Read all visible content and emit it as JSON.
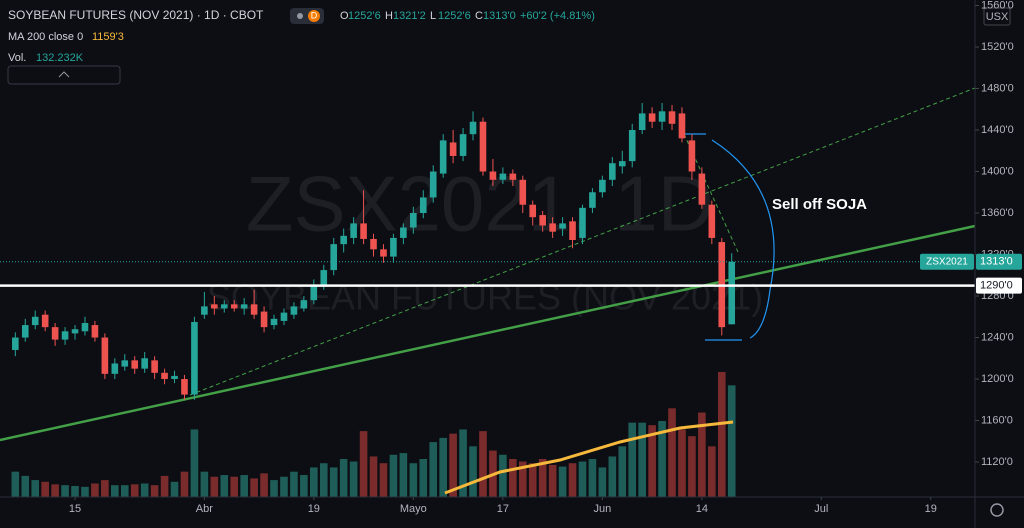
{
  "chart_data": {
    "type": "candlestick",
    "legend": {
      "title": "SOYBEAN FUTURES (NOV 2021) · 1D · CBOT",
      "badge": "D",
      "ohlc": [
        {
          "key": "O",
          "value": "1252'6"
        },
        {
          "key": "H",
          "value": "1321'2"
        },
        {
          "key": "L",
          "value": "1252'6"
        },
        {
          "key": "C",
          "value": "1313'0"
        }
      ],
      "change": "+60'2 (+4.81%)",
      "ma_label": "MA 200 close 0",
      "ma_value": "1159'3",
      "vol_label": "Vol.",
      "vol_value": "132.232K"
    },
    "watermark": "ZSX2021, 1D",
    "watermark_subtitle": "SOYBEAN FUTURES (NOV 2021)",
    "currency": "USX",
    "annotation": "Sell off SOJA",
    "symbol_label": "ZSX2021",
    "last_price_label": "1313'0",
    "price_line": {
      "value": 1290,
      "label": "1290'0"
    },
    "up_color": "#26a69a",
    "down_color": "#ef5350",
    "open": [
      1228,
      1240,
      1252,
      1262,
      1250,
      1238,
      1244,
      1246,
      1252,
      1240,
      1205,
      1212,
      1218,
      1210,
      1218,
      1206,
      1200,
      1200,
      1185,
      1262,
      1272,
      1268,
      1272,
      1268,
      1272,
      1265,
      1252,
      1256,
      1262,
      1268,
      1276,
      1290,
      1305,
      1330,
      1336,
      1350,
      1335,
      1325,
      1318,
      1336,
      1346,
      1360,
      1375,
      1398,
      1428,
      1415,
      1436,
      1448,
      1400,
      1392,
      1398,
      1392,
      1368,
      1358,
      1350,
      1345,
      1352,
      1336,
      1365,
      1380,
      1392,
      1405,
      1410,
      1440,
      1456,
      1448,
      1458,
      1456,
      1430,
      1398,
      1368,
      1332,
      1252.75
    ],
    "high": [
      1245,
      1258,
      1266,
      1266,
      1254,
      1250,
      1252,
      1260,
      1256,
      1244,
      1220,
      1224,
      1222,
      1226,
      1222,
      1210,
      1208,
      1204,
      1260,
      1284,
      1280,
      1276,
      1276,
      1278,
      1286,
      1270,
      1262,
      1268,
      1274,
      1280,
      1296,
      1310,
      1336,
      1345,
      1356,
      1382,
      1340,
      1330,
      1340,
      1350,
      1366,
      1382,
      1406,
      1436,
      1440,
      1442,
      1458,
      1452,
      1412,
      1404,
      1402,
      1396,
      1372,
      1362,
      1356,
      1356,
      1356,
      1368,
      1384,
      1396,
      1414,
      1420,
      1446,
      1466,
      1462,
      1466,
      1464,
      1462,
      1436,
      1404,
      1372,
      1336,
      1321.25
    ],
    "low": [
      1222,
      1236,
      1248,
      1246,
      1232,
      1233,
      1238,
      1242,
      1236,
      1200,
      1200,
      1208,
      1205,
      1206,
      1200,
      1195,
      1196,
      1180,
      1180,
      1258,
      1262,
      1264,
      1265,
      1262,
      1258,
      1245,
      1248,
      1252,
      1258,
      1265,
      1272,
      1286,
      1300,
      1322,
      1330,
      1330,
      1318,
      1312,
      1312,
      1330,
      1340,
      1355,
      1370,
      1394,
      1408,
      1410,
      1430,
      1396,
      1386,
      1388,
      1386,
      1360,
      1348,
      1342,
      1336,
      1338,
      1326,
      1330,
      1360,
      1375,
      1386,
      1398,
      1404,
      1436,
      1442,
      1440,
      1440,
      1428,
      1392,
      1364,
      1330,
      1242,
      1252.75
    ],
    "close": [
      1240,
      1252,
      1260,
      1250,
      1238,
      1246,
      1248,
      1254,
      1240,
      1205,
      1215,
      1218,
      1210,
      1220,
      1206,
      1200,
      1203,
      1185,
      1255,
      1270,
      1268,
      1272,
      1268,
      1272,
      1262,
      1250,
      1258,
      1264,
      1270,
      1276,
      1290,
      1305,
      1330,
      1338,
      1350,
      1335,
      1325,
      1318,
      1336,
      1346,
      1360,
      1375,
      1400,
      1430,
      1415,
      1436,
      1448,
      1400,
      1392,
      1398,
      1392,
      1368,
      1356,
      1348,
      1342,
      1350,
      1334,
      1365,
      1380,
      1392,
      1408,
      1410,
      1440,
      1456,
      1448,
      1458,
      1446,
      1432,
      1400,
      1368,
      1336,
      1250,
      1313
    ],
    "volume": [
      30,
      25,
      20,
      18,
      15,
      14,
      13,
      12,
      16,
      20,
      14,
      14,
      15,
      16,
      14,
      25,
      18,
      30,
      80,
      30,
      24,
      26,
      24,
      26,
      22,
      28,
      20,
      24,
      30,
      26,
      35,
      40,
      35,
      45,
      42,
      78,
      48,
      40,
      50,
      52,
      40,
      45,
      65,
      70,
      75,
      80,
      60,
      78,
      55,
      50,
      45,
      42,
      40,
      45,
      38,
      36,
      40,
      42,
      45,
      35,
      48,
      60,
      88,
      88,
      85,
      90,
      105,
      80,
      72,
      100,
      60,
      148,
      132.232
    ],
    "xlim": [
      -1.54,
      96.45
    ],
    "xticks": [
      {
        "value": 6,
        "label": "15"
      },
      {
        "value": 19,
        "label": "Abr"
      },
      {
        "value": 30,
        "label": "19"
      },
      {
        "value": 40,
        "label": "Mayo"
      },
      {
        "value": 49,
        "label": "17"
      },
      {
        "value": 59,
        "label": "Jun"
      },
      {
        "value": 69,
        "label": "14"
      },
      {
        "value": 81,
        "label": "Jul"
      },
      {
        "value": 92,
        "label": "19"
      }
    ],
    "ylim": [
      1086.3,
      1565.3
    ],
    "yticks": [
      {
        "value": 1120,
        "label": "1120'0"
      },
      {
        "value": 1160,
        "label": "1160'0"
      },
      {
        "value": 1200,
        "label": "1200'0"
      },
      {
        "value": 1240,
        "label": "1240'0"
      },
      {
        "value": 1280,
        "label": "1280'0"
      },
      {
        "value": 1320,
        "label": "1320'0"
      },
      {
        "value": 1360,
        "label": "1360'0"
      },
      {
        "value": 1400,
        "label": "1400'0"
      },
      {
        "value": 1440,
        "label": "1440'0"
      },
      {
        "value": 1480,
        "label": "1480'0"
      },
      {
        "value": 1520,
        "label": "1520'0"
      },
      {
        "value": 1560,
        "label": "1560'0"
      }
    ]
  }
}
